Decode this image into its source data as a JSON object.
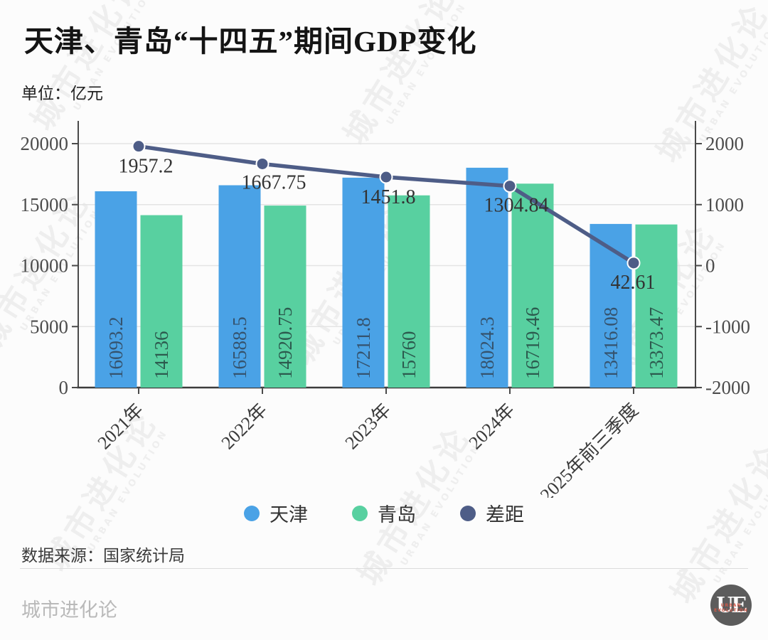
{
  "title": "天津、青岛“十四五”期间GDP变化",
  "unit_label": "单位：亿元",
  "watermark": {
    "cn": "城市进化论",
    "en": "URBAN EVOLUTION"
  },
  "chart_data": {
    "type": "bar+line",
    "title": "天津、青岛“十四五”期间GDP变化",
    "unit": "亿元",
    "categories": [
      "2021年",
      "2022年",
      "2023年",
      "2024年",
      "2025年前三季度"
    ],
    "series": [
      {
        "name": "天津",
        "type": "bar",
        "color": "#4aa2e6",
        "label_color": "#35536e",
        "values": [
          16093.2,
          16588.5,
          17211.8,
          18024.3,
          13416.08
        ]
      },
      {
        "name": "青岛",
        "type": "bar",
        "color": "#58d0a0",
        "label_color": "#2c5a4e",
        "values": [
          14136,
          14920.75,
          15760,
          16719.46,
          13373.47
        ]
      },
      {
        "name": "差距",
        "type": "line",
        "color": "#4e5d87",
        "label_color": "#333333",
        "values": [
          1957.2,
          1667.75,
          1451.8,
          1304.84,
          42.61
        ]
      }
    ],
    "left_axis": {
      "ticks": [
        0,
        5000,
        10000,
        15000,
        20000
      ],
      "min": 0,
      "max": 20000
    },
    "right_axis": {
      "ticks": [
        -2000,
        -1000,
        0,
        1000,
        2000
      ],
      "min": -2000,
      "max": 2000
    },
    "grid": true,
    "legend_position": "bottom"
  },
  "legend": [
    {
      "label": "天津",
      "color": "#4aa2e6"
    },
    {
      "label": "青岛",
      "color": "#58d0a0"
    },
    {
      "label": "差距",
      "color": "#4e5d87"
    }
  ],
  "source": "数据来源：国家统计局",
  "footer": {
    "brand": "城市进化论",
    "logo_text": "UE",
    "logo_sub": "URBAN EVOLUTION"
  }
}
